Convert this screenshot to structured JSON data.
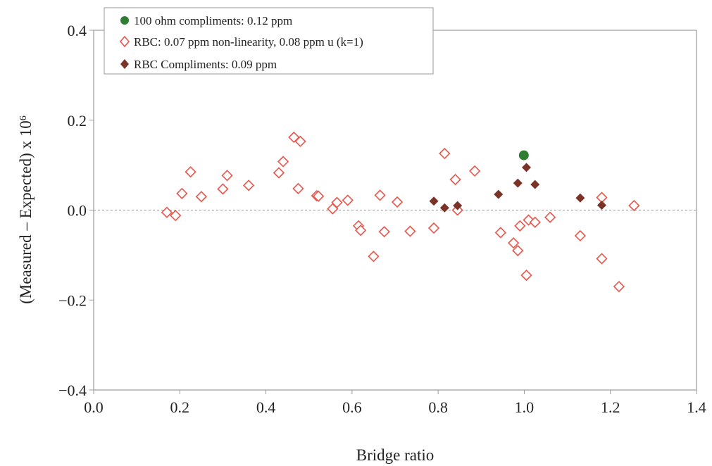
{
  "chart_data": {
    "type": "scatter",
    "xlabel": "Bridge ratio",
    "ylabel_main": "(Measured – Expected) x 10",
    "ylabel_exp": "6",
    "xlim": [
      0.0,
      1.4
    ],
    "ylim": [
      -0.4,
      0.4
    ],
    "xticks": [
      "0.0",
      "0.2",
      "0.4",
      "0.6",
      "0.8",
      "1.0",
      "1.2",
      "1.4"
    ],
    "yticks": [
      "−0.4",
      "−0.2",
      "0.0",
      "0.2",
      "0.4"
    ],
    "xtick_values": [
      0.0,
      0.2,
      0.4,
      0.6,
      0.8,
      1.0,
      1.2,
      1.4
    ],
    "ytick_values": [
      -0.4,
      -0.2,
      0.0,
      0.2,
      0.4
    ],
    "zero_line": true,
    "legend_position": "top-left",
    "series": [
      {
        "name": "100 ohm compliments: 0.12 ppm",
        "marker": "filled-circle",
        "color": "#2e7d32",
        "points": [
          [
            0.999,
            0.122
          ]
        ]
      },
      {
        "name": "RBC: 0.07 ppm non-linearity, 0.08 ppm u (k=1)",
        "marker": "open-diamond",
        "color": "#e8554b",
        "points": [
          [
            0.17,
            -0.005
          ],
          [
            0.19,
            -0.012
          ],
          [
            0.205,
            0.037
          ],
          [
            0.225,
            0.085
          ],
          [
            0.25,
            0.03
          ],
          [
            0.3,
            0.047
          ],
          [
            0.31,
            0.077
          ],
          [
            0.36,
            0.055
          ],
          [
            0.43,
            0.083
          ],
          [
            0.44,
            0.108
          ],
          [
            0.465,
            0.162
          ],
          [
            0.475,
            0.048
          ],
          [
            0.48,
            0.153
          ],
          [
            0.518,
            0.032
          ],
          [
            0.522,
            0.031
          ],
          [
            0.555,
            0.003
          ],
          [
            0.565,
            0.017
          ],
          [
            0.59,
            0.022
          ],
          [
            0.615,
            -0.035
          ],
          [
            0.62,
            -0.045
          ],
          [
            0.65,
            -0.103
          ],
          [
            0.665,
            0.033
          ],
          [
            0.675,
            -0.048
          ],
          [
            0.705,
            0.018
          ],
          [
            0.735,
            -0.047
          ],
          [
            0.79,
            -0.04
          ],
          [
            0.815,
            0.126
          ],
          [
            0.84,
            0.068
          ],
          [
            0.845,
            0.0
          ],
          [
            0.885,
            0.087
          ],
          [
            0.945,
            -0.05
          ],
          [
            0.975,
            -0.073
          ],
          [
            0.985,
            -0.09
          ],
          [
            0.99,
            -0.035
          ],
          [
            1.005,
            -0.145
          ],
          [
            1.01,
            -0.022
          ],
          [
            1.025,
            -0.027
          ],
          [
            1.06,
            -0.016
          ],
          [
            1.13,
            -0.057
          ],
          [
            1.18,
            0.028
          ],
          [
            1.18,
            -0.108
          ],
          [
            1.22,
            -0.17
          ],
          [
            1.255,
            0.01
          ]
        ]
      },
      {
        "name": "RBC Compliments: 0.09 ppm",
        "marker": "filled-diamond",
        "color": "#7b3328",
        "points": [
          [
            0.79,
            0.02
          ],
          [
            0.815,
            0.005
          ],
          [
            0.845,
            0.01
          ],
          [
            0.94,
            0.035
          ],
          [
            0.985,
            0.06
          ],
          [
            1.005,
            0.095
          ],
          [
            1.025,
            0.057
          ],
          [
            1.13,
            0.027
          ],
          [
            1.18,
            0.011
          ]
        ]
      }
    ]
  }
}
